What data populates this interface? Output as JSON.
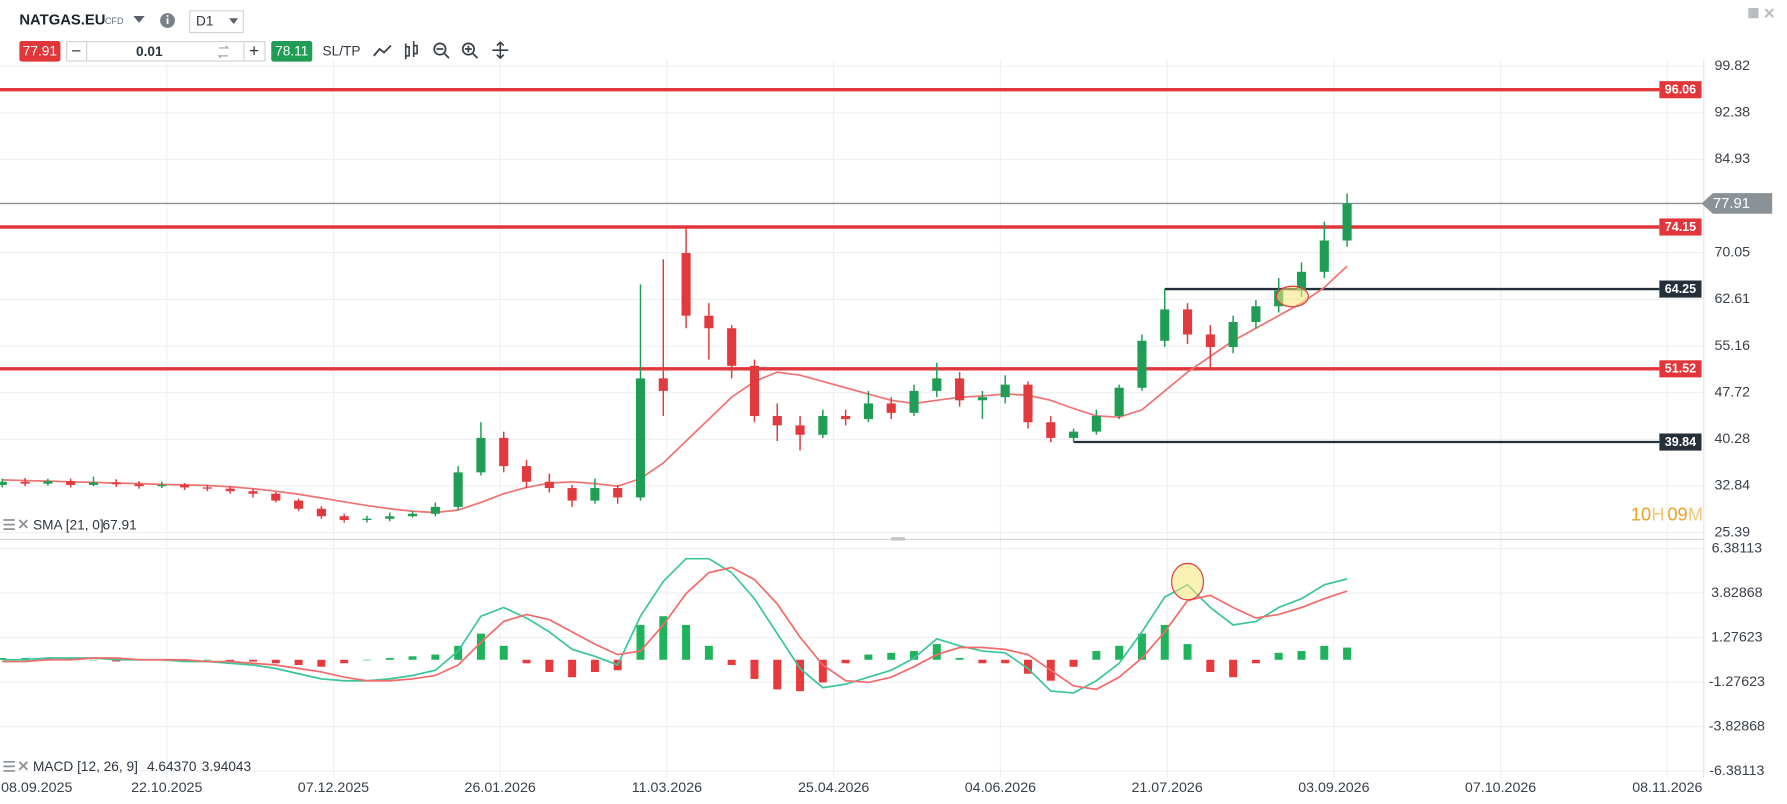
{
  "header": {
    "symbol": "NATGAS.EU",
    "instrument_type": "CFD",
    "timeframe": "D1",
    "sell_price": 77.91,
    "volume": 0.01,
    "buy_price": 78.11,
    "sl_tp": "SL/TP"
  },
  "countdown": {
    "hours": "10",
    "hours_unit": "H",
    "minutes": "09",
    "minutes_unit": "M"
  },
  "chart_data": {
    "type": "candlestick",
    "up_color": "#1f9d55",
    "down_color": "#e03a3e",
    "open": [
      33.0,
      33.5,
      33.2,
      33.6,
      33.0,
      33.4,
      33.1,
      32.8,
      33.0,
      32.6,
      32.4,
      32.0,
      31.6,
      30.5,
      29.2,
      28.0,
      27.4,
      27.6,
      28.0,
      28.4,
      29.5,
      35.0,
      40.5,
      36.0,
      33.5,
      32.5,
      30.5,
      32.5,
      31.0,
      50.0,
      70.0,
      60.0,
      58.0,
      52.0,
      44.0,
      42.5,
      41.0,
      44.0,
      43.5,
      46.0,
      44.5,
      48.0,
      50.0,
      46.5,
      47.0,
      49.0,
      43.0,
      40.5,
      41.5,
      44.0,
      48.5,
      56.0,
      61.0,
      57.0,
      55.0,
      59.0,
      61.5,
      64.0,
      67.0,
      72.0
    ],
    "high": [
      34.0,
      34.1,
      34.0,
      34.0,
      34.3,
      33.9,
      33.6,
      33.5,
      33.3,
      33.0,
      32.8,
      32.4,
      31.9,
      30.8,
      29.6,
      28.4,
      28.1,
      28.6,
      28.9,
      30.2,
      36.0,
      43.0,
      41.5,
      37.0,
      34.8,
      33.0,
      34.0,
      33.0,
      65.0,
      69.0,
      74.15,
      62.0,
      58.5,
      53.0,
      46.0,
      44.0,
      45.0,
      45.0,
      48.0,
      47.0,
      49.0,
      52.5,
      51.0,
      48.0,
      50.5,
      49.5,
      44.0,
      42.0,
      45.0,
      49.0,
      57.0,
      64.25,
      62.0,
      58.5,
      60.0,
      62.5,
      66.0,
      68.5,
      75.0,
      79.5
    ],
    "low": [
      32.6,
      32.8,
      32.9,
      32.6,
      32.8,
      32.7,
      32.4,
      32.5,
      32.2,
      32.0,
      31.6,
      31.0,
      30.2,
      28.8,
      27.6,
      27.0,
      27.0,
      27.2,
      27.8,
      28.0,
      29.0,
      34.5,
      35.0,
      32.5,
      31.8,
      29.5,
      30.0,
      30.0,
      30.5,
      44.0,
      58.0,
      53.0,
      50.0,
      43.0,
      40.0,
      38.5,
      40.5,
      42.5,
      43.0,
      43.5,
      44.0,
      47.0,
      45.5,
      43.5,
      46.0,
      42.0,
      39.8,
      39.84,
      41.0,
      43.5,
      48.0,
      55.0,
      55.5,
      51.52,
      54.0,
      58.0,
      60.5,
      63.0,
      66.0,
      71.0
    ],
    "close": [
      33.5,
      33.2,
      33.6,
      33.0,
      33.4,
      33.1,
      32.8,
      33.0,
      32.6,
      32.4,
      32.0,
      31.6,
      30.5,
      29.2,
      28.0,
      27.4,
      27.6,
      28.0,
      28.4,
      29.5,
      35.0,
      40.5,
      36.0,
      33.5,
      32.5,
      30.5,
      32.5,
      31.0,
      50.0,
      48.0,
      60.0,
      58.0,
      52.0,
      44.0,
      42.5,
      41.0,
      44.0,
      43.5,
      46.0,
      44.5,
      48.0,
      50.0,
      46.5,
      47.0,
      49.0,
      43.0,
      40.5,
      41.5,
      44.0,
      48.5,
      56.0,
      61.0,
      57.0,
      55.0,
      59.0,
      61.5,
      64.0,
      67.0,
      72.0,
      77.91
    ],
    "ylim": [
      24.12,
      100.91
    ],
    "yticks": [
      99.82,
      92.38,
      84.93,
      70.05,
      62.61,
      55.16,
      47.72,
      40.28,
      32.84,
      25.39
    ],
    "xticks": [
      "08.09.2025",
      "22.10.2025",
      "07.12.2025",
      "26.01.2026",
      "11.03.2026",
      "25.04.2026",
      "04.06.2026",
      "21.07.2026",
      "03.09.2026",
      "07.10.2026",
      "08.11.2026"
    ],
    "grid": true,
    "last_price_color": "#8a9197",
    "levels": [
      {
        "value": 96.06,
        "color": "#e2363b",
        "extend": "both"
      },
      {
        "value": 74.15,
        "color": "#e2363b",
        "extend": "both"
      },
      {
        "value": 64.25,
        "color": "#26303b",
        "extend": "right"
      },
      {
        "value": 51.52,
        "color": "#e2363b",
        "extend": "both"
      },
      {
        "value": 39.84,
        "color": "#26303b",
        "extend": "right"
      }
    ],
    "overlays": [
      {
        "name": "SMA [21, 0]",
        "color": "#f07272",
        "values": [
          33.8,
          33.7,
          33.6,
          33.5,
          33.4,
          33.3,
          33.2,
          33.1,
          33.0,
          32.9,
          32.7,
          32.4,
          32.0,
          31.5,
          30.9,
          30.3,
          29.7,
          29.2,
          28.8,
          28.6,
          29.0,
          30.2,
          31.6,
          32.6,
          33.3,
          33.5,
          33.2,
          32.8,
          34.0,
          36.5,
          40.0,
          43.5,
          47.0,
          49.5,
          51.0,
          50.5,
          49.5,
          48.5,
          47.5,
          46.5,
          46.0,
          46.5,
          47.0,
          47.2,
          47.5,
          47.3,
          46.5,
          45.2,
          44.0,
          43.8,
          45.0,
          48.0,
          51.0,
          53.5,
          56.0,
          58.0,
          60.0,
          62.0,
          64.5,
          67.91
        ]
      }
    ],
    "indicator": {
      "type": "macd",
      "name": "MACD [12, 26, 9]",
      "value_labels": [
        "4.64370",
        "3.94043"
      ],
      "ylim": [
        -6.77,
        6.84
      ],
      "yticks": [
        6.38113,
        3.82868,
        1.27623,
        -1.27623,
        -3.82868,
        -6.38113
      ],
      "series": [
        {
          "color": "#3cc49b",
          "values": [
            0,
            0,
            0.1,
            0.1,
            0.1,
            0,
            0,
            0,
            -0.1,
            -0.1,
            -0.2,
            -0.3,
            -0.5,
            -0.8,
            -1.1,
            -1.2,
            -1.2,
            -1.1,
            -0.9,
            -0.6,
            0.5,
            2.5,
            3.0,
            2.4,
            1.6,
            0.6,
            0.2,
            -0.3,
            2.5,
            4.5,
            5.8,
            5.8,
            5.0,
            3.5,
            1.5,
            -0.5,
            -1.6,
            -1.4,
            -1.0,
            -0.6,
            0.1,
            1.2,
            0.8,
            0.5,
            0.4,
            -0.5,
            -1.8,
            -1.9,
            -1.2,
            -0.2,
            1.6,
            3.6,
            4.3,
            3.0,
            2.0,
            2.2,
            3.0,
            3.5,
            4.3,
            4.6437
          ]
        },
        {
          "color": "#f26a6a",
          "values": [
            -0.1,
            -0.1,
            0,
            0,
            0.1,
            0.1,
            0,
            0,
            0,
            -0.1,
            -0.1,
            -0.2,
            -0.3,
            -0.5,
            -0.7,
            -1.0,
            -1.2,
            -1.2,
            -1.1,
            -0.9,
            -0.3,
            1.0,
            2.2,
            2.6,
            2.3,
            1.6,
            0.9,
            0.3,
            0.5,
            2.0,
            3.8,
            5.0,
            5.3,
            4.6,
            3.2,
            1.3,
            -0.3,
            -1.2,
            -1.3,
            -1.0,
            -0.4,
            0.3,
            0.7,
            0.7,
            0.6,
            0.3,
            -0.6,
            -1.5,
            -1.7,
            -1.0,
            0.1,
            1.6,
            3.4,
            3.7,
            3.0,
            2.4,
            2.6,
            3.0,
            3.5,
            3.94043
          ]
        }
      ],
      "histogram": {
        "up_color": "#1fb35b",
        "down_color": "#e8393c",
        "values": [
          0.1,
          0.1,
          0.1,
          0.1,
          0,
          -0.1,
          0,
          0,
          -0.1,
          0,
          -0.1,
          -0.1,
          -0.2,
          -0.3,
          -0.4,
          -0.2,
          0,
          0.1,
          0.2,
          0.3,
          0.8,
          1.5,
          0.8,
          -0.2,
          -0.7,
          -1.0,
          -0.7,
          -0.6,
          2.0,
          2.5,
          2.0,
          0.8,
          -0.3,
          -1.1,
          -1.7,
          -1.8,
          -1.3,
          -0.2,
          0.3,
          0.4,
          0.5,
          0.9,
          0.1,
          -0.2,
          -0.2,
          -0.8,
          -1.2,
          -0.4,
          0.5,
          0.8,
          1.5,
          2.0,
          0.9,
          -0.7,
          -1.0,
          -0.2,
          0.4,
          0.5,
          0.8,
          0.7
        ]
      }
    }
  }
}
